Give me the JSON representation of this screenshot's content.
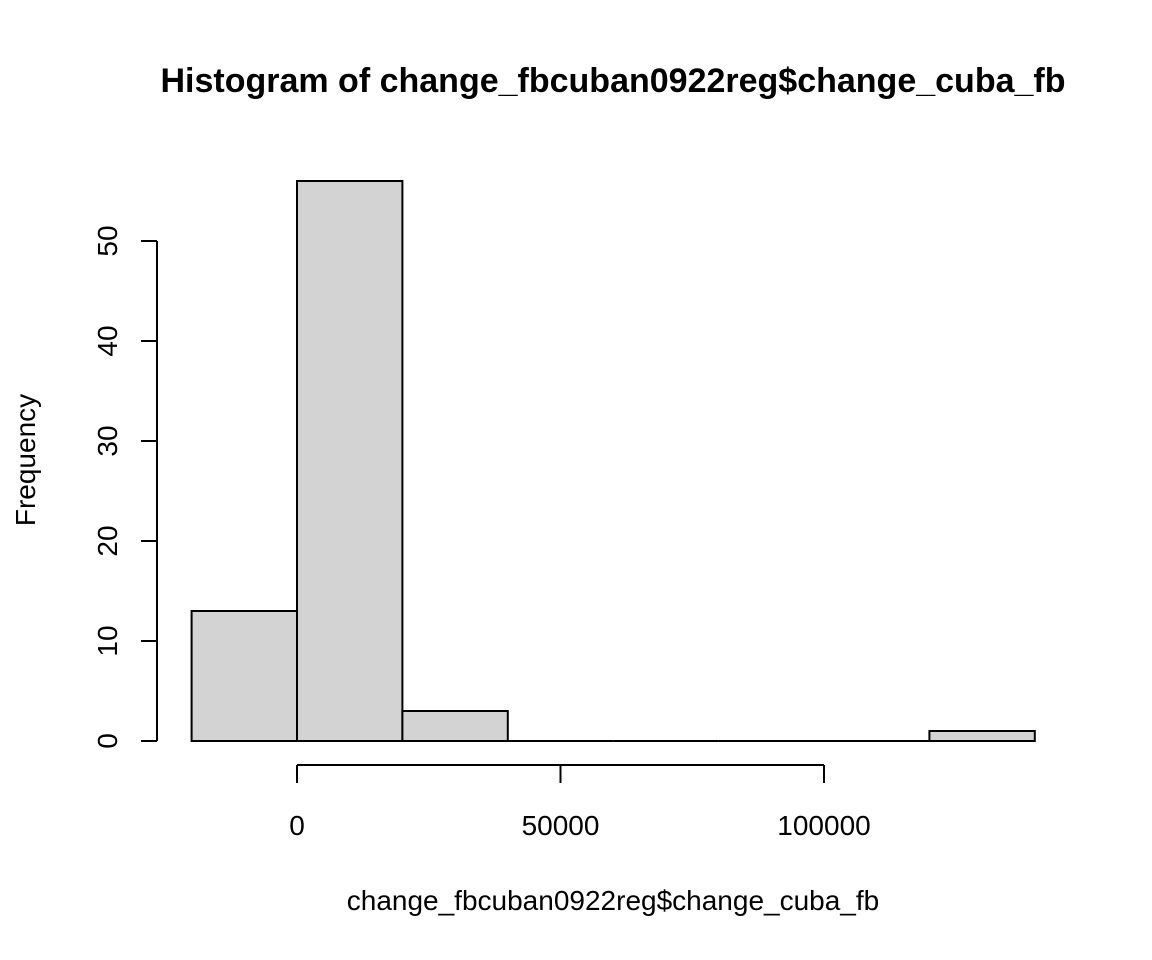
{
  "chart_data": {
    "type": "bar",
    "title": "Histogram of change_fbcuban0922reg$change_cuba_fb",
    "xlabel": "change_fbcuban0922reg$change_cuba_fb",
    "ylabel": "Frequency",
    "bins": [
      {
        "start": -20000,
        "end": 0,
        "count": 13
      },
      {
        "start": 0,
        "end": 20000,
        "count": 56
      },
      {
        "start": 20000,
        "end": 40000,
        "count": 3
      },
      {
        "start": 40000,
        "end": 60000,
        "count": 0
      },
      {
        "start": 60000,
        "end": 80000,
        "count": 0
      },
      {
        "start": 80000,
        "end": 100000,
        "count": 0
      },
      {
        "start": 100000,
        "end": 120000,
        "count": 0
      },
      {
        "start": 120000,
        "end": 140000,
        "count": 1
      }
    ],
    "x_ticks": [
      0,
      50000,
      100000
    ],
    "x_tick_labels": [
      "0",
      "50000",
      "100000"
    ],
    "y_ticks": [
      0,
      10,
      20,
      30,
      40,
      50
    ],
    "y_tick_labels": [
      "0",
      "10",
      "20",
      "30",
      "40",
      "50"
    ],
    "xlim": [
      -20000,
      140000
    ],
    "ylim": [
      0,
      56
    ],
    "grid": false,
    "bar_color": "#d3d3d3"
  }
}
